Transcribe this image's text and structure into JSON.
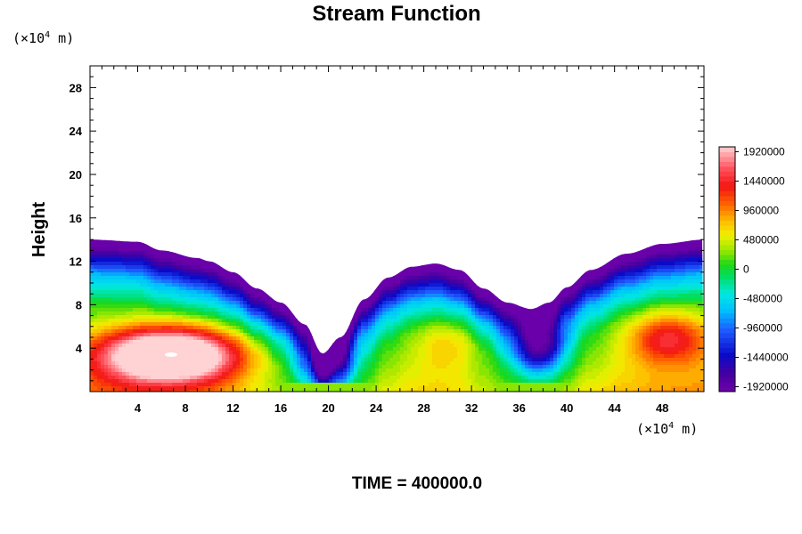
{
  "chart_data": {
    "type": "heatmap",
    "title": "Stream Function",
    "ylabel": "Height",
    "xlabel": "",
    "x_unit": {
      "prefix": "(×10",
      "exponent": "4",
      "suffix": " m)"
    },
    "y_unit": {
      "prefix": "(×10",
      "exponent": "4",
      "suffix": " m)"
    },
    "xlim": [
      0,
      51.5
    ],
    "ylim": [
      0,
      30
    ],
    "xticks": [
      4,
      8,
      12,
      16,
      20,
      24,
      28,
      32,
      36,
      40,
      44,
      48
    ],
    "yticks": [
      4,
      8,
      12,
      16,
      20,
      24,
      28
    ],
    "colorbar": {
      "min": -2000000,
      "max": 2000000,
      "step": 80000,
      "ticks": [
        1920000,
        1440000,
        960000,
        480000,
        0,
        -480000,
        -960000,
        -1440000,
        -1920000
      ]
    },
    "terrain_top": [
      [
        0,
        14.0
      ],
      [
        4,
        13.8
      ],
      [
        6,
        13.0
      ],
      [
        9,
        12.3
      ],
      [
        10,
        12.0
      ],
      [
        12,
        11.0
      ],
      [
        14,
        9.5
      ],
      [
        16,
        8.2
      ],
      [
        18,
        6.2
      ],
      [
        19.5,
        3.5
      ],
      [
        21,
        5.0
      ],
      [
        23,
        8.5
      ],
      [
        25,
        10.5
      ],
      [
        27,
        11.5
      ],
      [
        29,
        11.8
      ],
      [
        31,
        11.2
      ],
      [
        33,
        9.5
      ],
      [
        35,
        8.2
      ],
      [
        37,
        7.6
      ],
      [
        38.5,
        8.2
      ],
      [
        40,
        9.6
      ],
      [
        42,
        11.2
      ],
      [
        45,
        12.7
      ],
      [
        48,
        13.6
      ],
      [
        51.5,
        14.0
      ]
    ],
    "features": [
      {
        "x": 6.8,
        "y": 3.4,
        "value": 2000000,
        "sx": 6.0,
        "sy": 2.6
      },
      {
        "x": 48.5,
        "y": 5.0,
        "value": 1500000,
        "sx": 3.5,
        "sy": 2.4
      },
      {
        "x": 30.0,
        "y": 4.5,
        "value": 450000,
        "sx": 3.0,
        "sy": 2.5
      },
      {
        "x": 37.8,
        "y": 4.0,
        "value": -2000000,
        "sx": 2.2,
        "sy": 2.6
      }
    ],
    "time_label": "TIME = 400000.0"
  }
}
